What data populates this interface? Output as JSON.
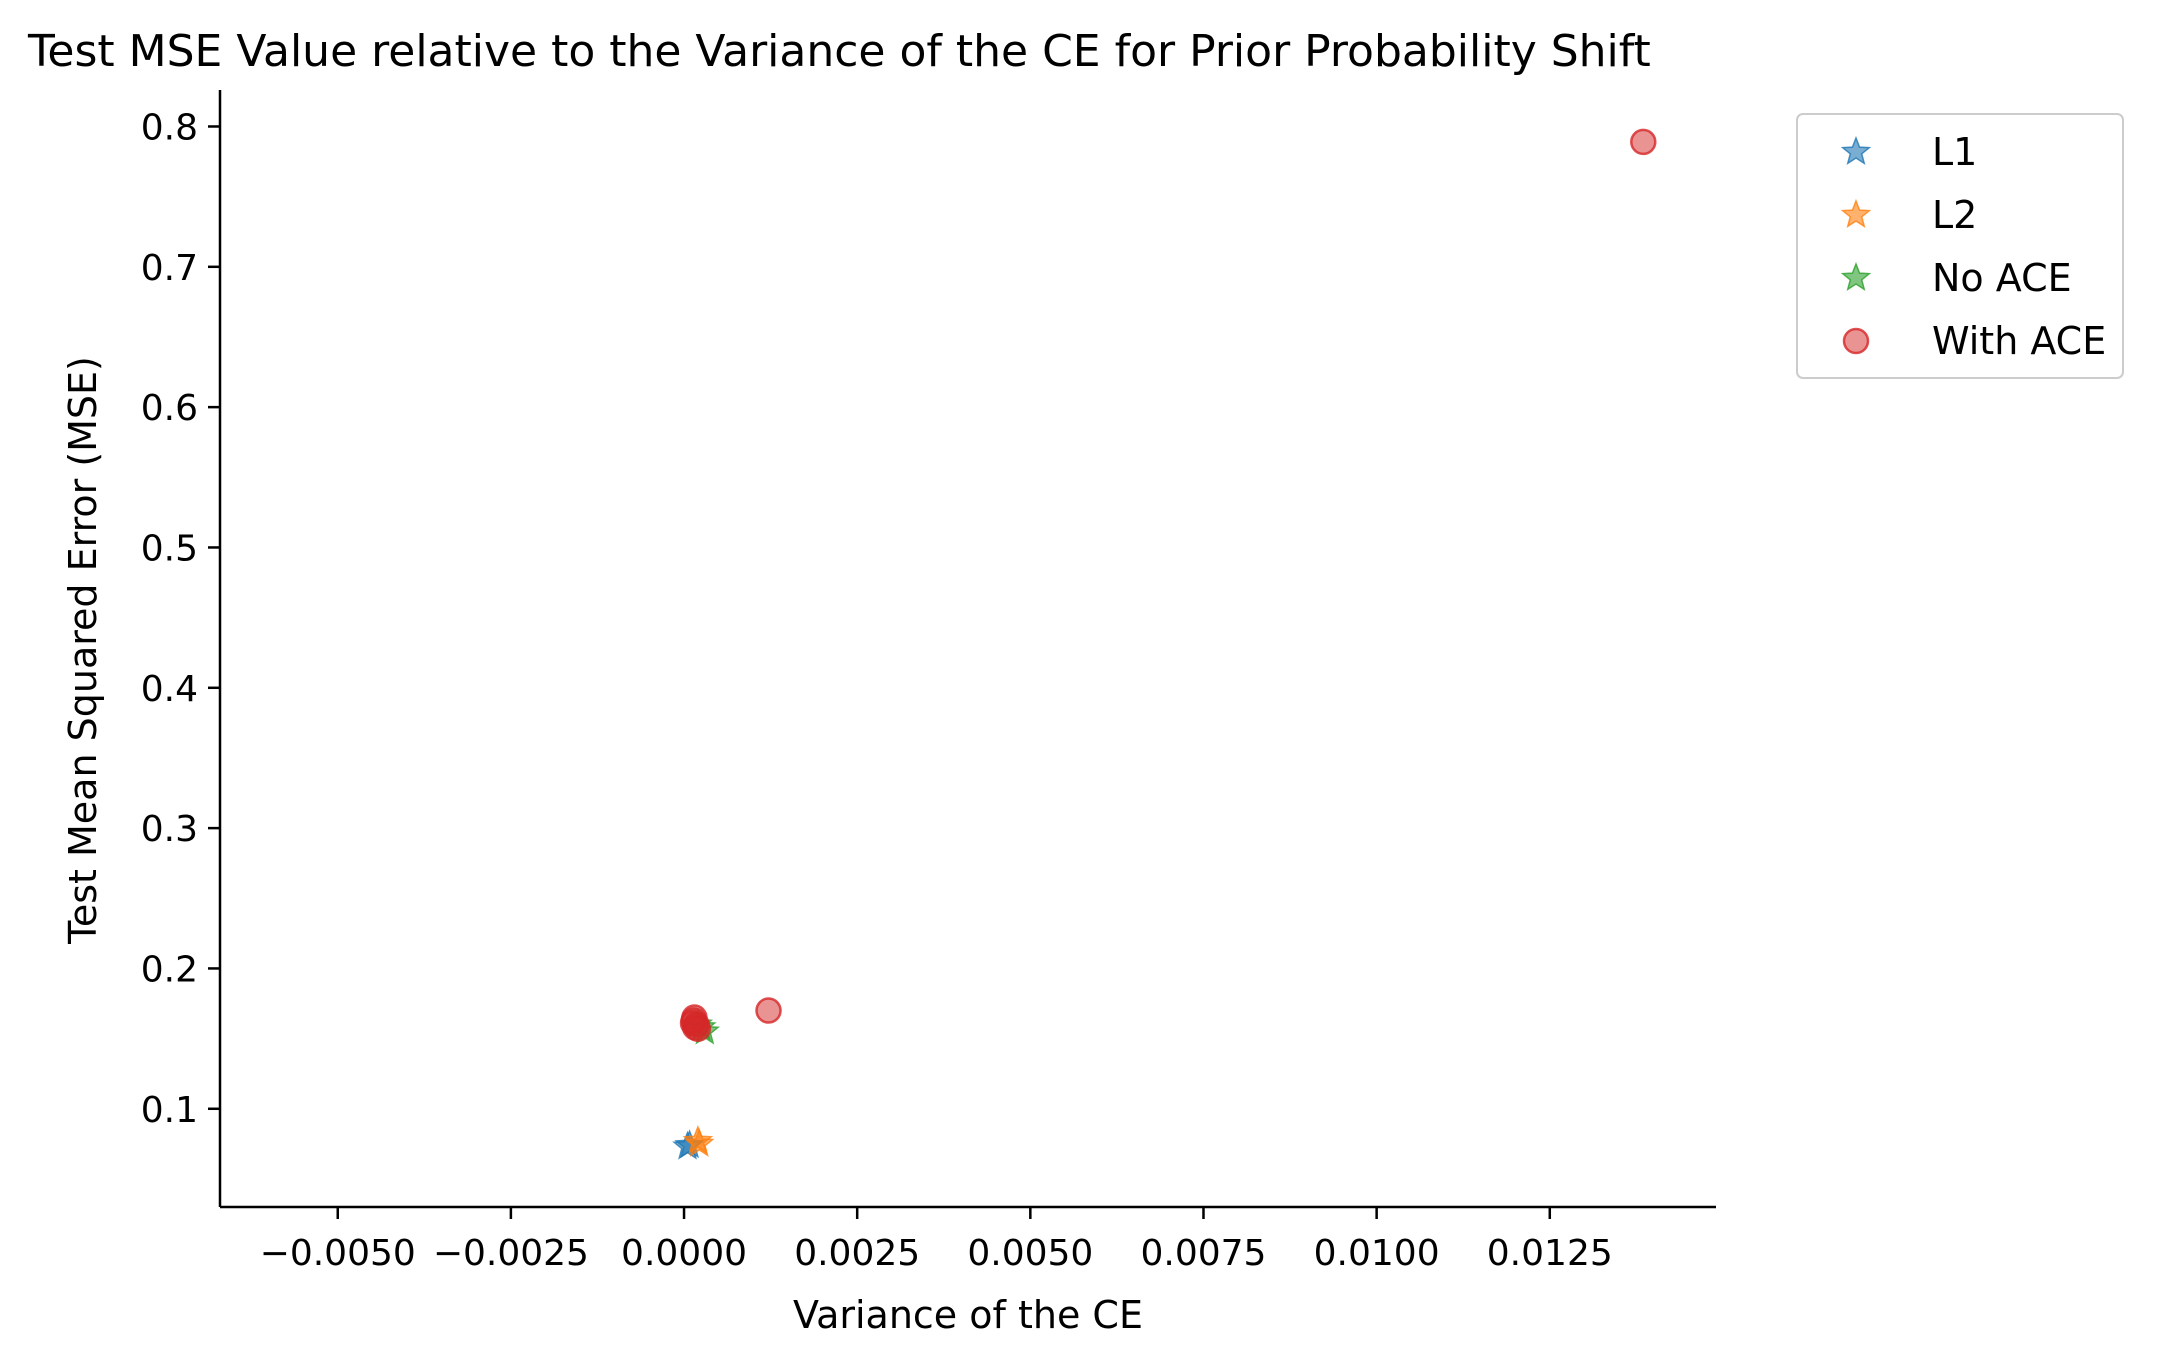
{
  "chart_data": {
    "type": "scatter",
    "title": "Test MSE Value relative to the Variance of the CE for Prior Probability Shift",
    "xlabel": "Variance of the CE",
    "ylabel": "Test Mean Squared Error (MSE)",
    "xlim": [
      -0.0067,
      0.0149
    ],
    "ylim": [
      0.03,
      0.826
    ],
    "x_ticks": [
      -0.005,
      -0.0025,
      0.0,
      0.0025,
      0.005,
      0.0075,
      0.01,
      0.0125
    ],
    "x_tick_labels": [
      "−0.0050",
      "−0.0025",
      "0.0000",
      "0.0025",
      "0.0050",
      "0.0075",
      "0.0100",
      "0.0125"
    ],
    "y_ticks": [
      0.1,
      0.2,
      0.3,
      0.4,
      0.5,
      0.6,
      0.7,
      0.8
    ],
    "y_tick_labels": [
      "0.1",
      "0.2",
      "0.3",
      "0.4",
      "0.5",
      "0.6",
      "0.7",
      "0.8"
    ],
    "grid": false,
    "legend_position": "upper right, outside plot",
    "series": [
      {
        "name": "L1",
        "marker": "star",
        "color": "#1f77b4",
        "points": [
          {
            "x": 5e-05,
            "y": 0.073
          },
          {
            "x": 8e-05,
            "y": 0.074
          }
        ]
      },
      {
        "name": "L2",
        "marker": "star",
        "color": "#ff7f0e",
        "points": [
          {
            "x": 0.00022,
            "y": 0.075
          },
          {
            "x": 0.0002,
            "y": 0.077
          }
        ]
      },
      {
        "name": "No ACE",
        "marker": "star",
        "color": "#2ca02c",
        "points": [
          {
            "x": 0.0003,
            "y": 0.155
          },
          {
            "x": 0.00025,
            "y": 0.158
          },
          {
            "x": 0.0002,
            "y": 0.16
          }
        ]
      },
      {
        "name": "With ACE",
        "marker": "circle",
        "color": "#d62728",
        "points": [
          {
            "x": 0.01385,
            "y": 0.789
          },
          {
            "x": 0.00122,
            "y": 0.17
          },
          {
            "x": 0.00015,
            "y": 0.165
          },
          {
            "x": 0.00013,
            "y": 0.161
          },
          {
            "x": 0.00016,
            "y": 0.158
          },
          {
            "x": 0.00018,
            "y": 0.16
          },
          {
            "x": 0.0002,
            "y": 0.157
          },
          {
            "x": 0.00014,
            "y": 0.163
          }
        ]
      }
    ]
  }
}
